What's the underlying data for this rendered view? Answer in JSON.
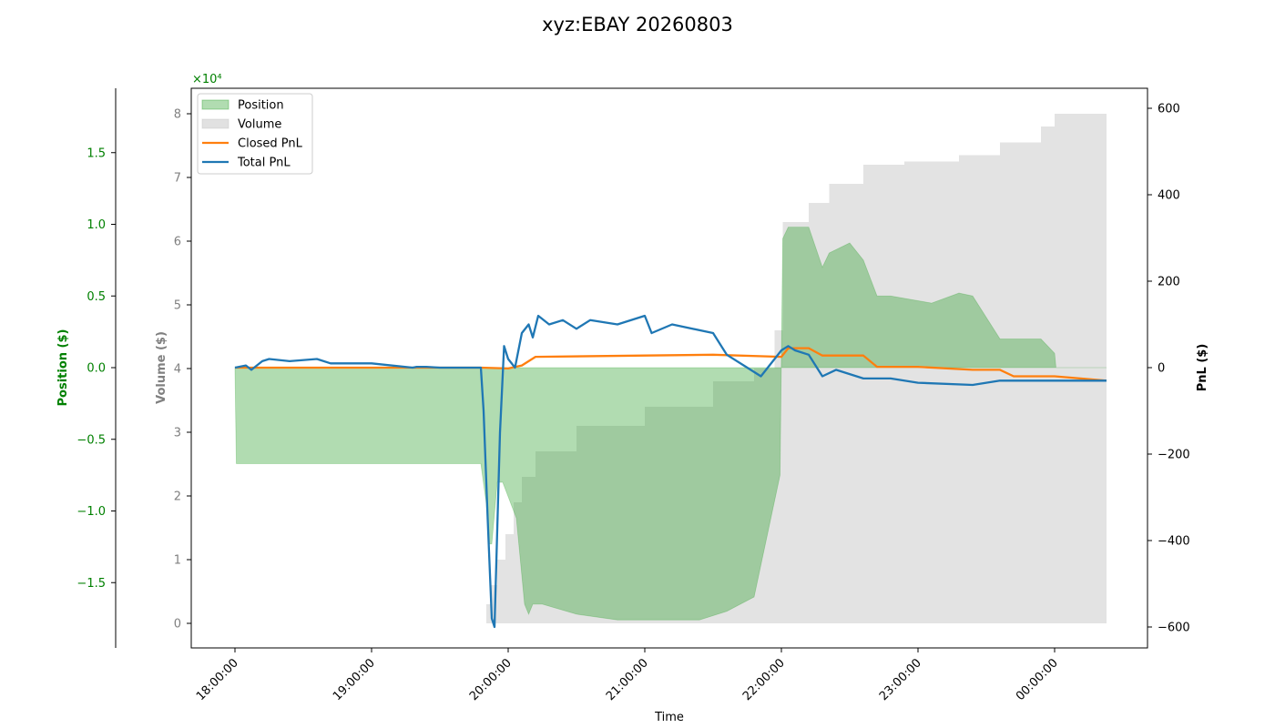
{
  "chart_data": {
    "type": "area",
    "title": "xyz:EBAY 20260803",
    "xlabel": "Time",
    "x_ticks": [
      "18:00:00",
      "19:00:00",
      "20:00:00",
      "21:00:00",
      "22:00:00",
      "23:00:00",
      "00:00:00"
    ],
    "axes": {
      "position": {
        "label": "Position ($)",
        "color": "#008000",
        "ticks": [
          "1.5",
          "1.0",
          "0.5",
          "0.0",
          "−0.5",
          "−1.0",
          "−1.5"
        ],
        "tick_values": [
          1.5,
          1.0,
          0.5,
          0.0,
          -0.5,
          -1.0,
          -1.5
        ],
        "scale_label": "×10⁴",
        "scale_label_note": "offset text is shown at top of the volume axis in green"
      },
      "volume": {
        "label": "Volume ($)",
        "color": "#808080",
        "ticks": [
          "8",
          "7",
          "6",
          "5",
          "4",
          "3",
          "2",
          "1",
          "0"
        ],
        "tick_values": [
          8,
          7,
          6,
          5,
          4,
          3,
          2,
          1,
          0
        ]
      },
      "pnl": {
        "label": "PnL ($)",
        "color": "#000000",
        "ticks": [
          "600",
          "400",
          "200",
          "0",
          "−200",
          "−400",
          "−600"
        ],
        "tick_values": [
          600,
          400,
          200,
          0,
          -200,
          -400,
          -600
        ]
      }
    },
    "legend": {
      "placement": "top-left",
      "entries": [
        {
          "label": "Position",
          "kind": "patch",
          "color": "#2ca02c"
        },
        {
          "label": "Volume",
          "kind": "patch",
          "color": "#bdbdbd"
        },
        {
          "label": "Closed PnL",
          "kind": "line",
          "color": "#ff7f0e"
        },
        {
          "label": "Total PnL",
          "kind": "line",
          "color": "#1f77b4"
        }
      ]
    },
    "colors": {
      "position_fill": "#2ca02c",
      "volume_fill": "#c8c8c8",
      "closed_pnl": "#ff7f0e",
      "total_pnl": "#1f77b4"
    },
    "x_domain_hours": [
      17.68,
      24.68
    ],
    "series": [
      {
        "name": "Volume",
        "unit": "$ x10^4",
        "x_hours": [
          18.0,
          19.82,
          19.84,
          19.87,
          19.92,
          19.98,
          20.04,
          20.1,
          20.2,
          20.5,
          21.0,
          21.5,
          21.8,
          21.95,
          22.01,
          22.2,
          22.35,
          22.6,
          22.9,
          23.3,
          23.6,
          23.9,
          24.0,
          24.38
        ],
        "values": [
          0.0,
          0.0,
          0.3,
          0.6,
          1.0,
          1.4,
          1.9,
          2.3,
          2.7,
          3.1,
          3.4,
          3.8,
          4.0,
          4.6,
          6.3,
          6.6,
          6.9,
          7.2,
          7.25,
          7.35,
          7.55,
          7.8,
          8.0,
          8.0
        ]
      },
      {
        "name": "Position",
        "unit": "$ x10^4",
        "x_hours": [
          18.0,
          18.01,
          19.8,
          19.84,
          19.86,
          19.88,
          19.92,
          19.96,
          20.0,
          20.06,
          20.1,
          20.12,
          20.15,
          20.18,
          20.25,
          20.5,
          20.8,
          21.0,
          21.2,
          21.4,
          21.6,
          21.8,
          21.99,
          22.01,
          22.05,
          22.2,
          22.3,
          22.35,
          22.5,
          22.6,
          22.7,
          22.8,
          23.1,
          23.3,
          23.4,
          23.6,
          23.7,
          23.9,
          24.0,
          24.01,
          24.38
        ],
        "values": [
          0.0,
          -0.67,
          -0.67,
          -0.95,
          -1.23,
          -1.23,
          -0.8,
          -0.8,
          -0.9,
          -1.05,
          -1.45,
          -1.65,
          -1.72,
          -1.65,
          -1.65,
          -1.72,
          -1.76,
          -1.76,
          -1.76,
          -1.76,
          -1.7,
          -1.6,
          -0.75,
          0.9,
          0.98,
          0.98,
          0.7,
          0.8,
          0.87,
          0.75,
          0.5,
          0.5,
          0.45,
          0.52,
          0.5,
          0.2,
          0.2,
          0.2,
          0.1,
          0.0,
          0.0
        ]
      },
      {
        "name": "Closed PnL",
        "unit": "$",
        "x_hours": [
          18.0,
          19.8,
          20.0,
          20.1,
          20.2,
          21.0,
          21.5,
          22.0,
          22.05,
          22.2,
          22.3,
          22.6,
          22.7,
          23.0,
          23.4,
          23.6,
          23.7,
          24.0,
          24.38
        ],
        "values": [
          0,
          0,
          -2,
          5,
          25,
          28,
          30,
          25,
          45,
          45,
          28,
          28,
          2,
          2,
          -5,
          -5,
          -20,
          -20,
          -30
        ]
      },
      {
        "name": "Total PnL",
        "unit": "$",
        "x_hours": [
          18.0,
          18.08,
          18.12,
          18.2,
          18.25,
          18.4,
          18.6,
          18.7,
          18.8,
          18.9,
          19.0,
          19.3,
          19.33,
          19.4,
          19.5,
          19.8,
          19.82,
          19.85,
          19.88,
          19.9,
          19.94,
          19.97,
          20.0,
          20.05,
          20.1,
          20.15,
          20.18,
          20.22,
          20.3,
          20.4,
          20.5,
          20.6,
          20.8,
          21.0,
          21.05,
          21.2,
          21.5,
          21.6,
          21.75,
          21.85,
          21.9,
          22.0,
          22.05,
          22.1,
          22.2,
          22.3,
          22.4,
          22.6,
          22.8,
          22.9,
          23.0,
          23.4,
          23.6,
          23.9,
          24.0,
          24.38
        ],
        "values": [
          0,
          5,
          -5,
          15,
          20,
          15,
          20,
          10,
          10,
          10,
          10,
          0,
          2,
          2,
          0,
          0,
          -100,
          -350,
          -580,
          -600,
          -150,
          50,
          20,
          0,
          80,
          100,
          70,
          120,
          100,
          110,
          90,
          110,
          100,
          120,
          80,
          100,
          80,
          30,
          0,
          -20,
          0,
          40,
          50,
          40,
          30,
          -20,
          -5,
          -25,
          -25,
          -30,
          -35,
          -40,
          -30,
          -30,
          -30,
          -30
        ]
      }
    ]
  }
}
